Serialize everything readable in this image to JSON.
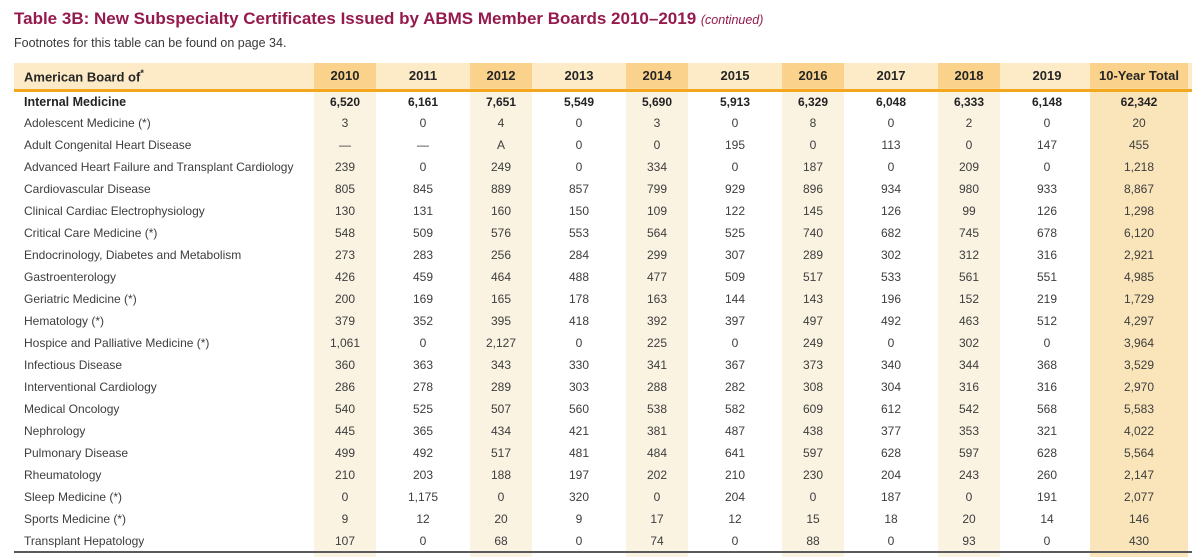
{
  "page": {
    "title_label": "Table 3B",
    "title_rest": ": New Subspecialty Certificates Issued by ABMS Member Boards 2010–2019 ",
    "title_continued": "(continued)",
    "footnote": "Footnotes for this table can be found on page 34."
  },
  "colors": {
    "title_maroon": "#951a4d",
    "header_cream": "#fcebc6",
    "header_band_orange": "#fad28c",
    "gold_rule": "#f2a71e",
    "body_stripe": "#faf3e2",
    "total_stripe": "#fae5bb",
    "text": "#3d3d3d",
    "bottom_rule": "#5a5a5a"
  },
  "table": {
    "row_header": {
      "text": "American Board of",
      "sup": "*"
    },
    "columns": [
      "2010",
      "2011",
      "2012",
      "2013",
      "2014",
      "2015",
      "2016",
      "2017",
      "2018",
      "2019",
      "10-Year Total"
    ],
    "rows": [
      {
        "label": "Internal Medicine",
        "bold": true,
        "values": [
          "6,520",
          "6,161",
          "7,651",
          "5,549",
          "5,690",
          "5,913",
          "6,329",
          "6,048",
          "6,333",
          "6,148",
          "62,342"
        ]
      },
      {
        "label": "Adolescent Medicine (*)",
        "values": [
          "3",
          "0",
          "4",
          "0",
          "3",
          "0",
          "8",
          "0",
          "2",
          "0",
          "20"
        ]
      },
      {
        "label": "Adult Congenital Heart Disease",
        "values": [
          "—",
          "—",
          "A",
          "0",
          "0",
          "195",
          "0",
          "113",
          "0",
          "147",
          "455"
        ]
      },
      {
        "label": "Advanced Heart Failure and Transplant Cardiology",
        "values": [
          "239",
          "0",
          "249",
          "0",
          "334",
          "0",
          "187",
          "0",
          "209",
          "0",
          "1,218"
        ]
      },
      {
        "label": "Cardiovascular Disease",
        "values": [
          "805",
          "845",
          "889",
          "857",
          "799",
          "929",
          "896",
          "934",
          "980",
          "933",
          "8,867"
        ]
      },
      {
        "label": "Clinical Cardiac Electrophysiology",
        "values": [
          "130",
          "131",
          "160",
          "150",
          "109",
          "122",
          "145",
          "126",
          "99",
          "126",
          "1,298"
        ]
      },
      {
        "label": "Critical Care Medicine (*)",
        "values": [
          "548",
          "509",
          "576",
          "553",
          "564",
          "525",
          "740",
          "682",
          "745",
          "678",
          "6,120"
        ]
      },
      {
        "label": "Endocrinology, Diabetes and Metabolism",
        "values": [
          "273",
          "283",
          "256",
          "284",
          "299",
          "307",
          "289",
          "302",
          "312",
          "316",
          "2,921"
        ]
      },
      {
        "label": "Gastroenterology",
        "values": [
          "426",
          "459",
          "464",
          "488",
          "477",
          "509",
          "517",
          "533",
          "561",
          "551",
          "4,985"
        ]
      },
      {
        "label": "Geriatric Medicine (*)",
        "values": [
          "200",
          "169",
          "165",
          "178",
          "163",
          "144",
          "143",
          "196",
          "152",
          "219",
          "1,729"
        ]
      },
      {
        "label": "Hematology (*)",
        "values": [
          "379",
          "352",
          "395",
          "418",
          "392",
          "397",
          "497",
          "492",
          "463",
          "512",
          "4,297"
        ]
      },
      {
        "label": "Hospice and Palliative Medicine (*)",
        "values": [
          "1,061",
          "0",
          "2,127",
          "0",
          "225",
          "0",
          "249",
          "0",
          "302",
          "0",
          "3,964"
        ]
      },
      {
        "label": "Infectious Disease",
        "values": [
          "360",
          "363",
          "343",
          "330",
          "341",
          "367",
          "373",
          "340",
          "344",
          "368",
          "3,529"
        ]
      },
      {
        "label": "Interventional Cardiology",
        "values": [
          "286",
          "278",
          "289",
          "303",
          "288",
          "282",
          "308",
          "304",
          "316",
          "316",
          "2,970"
        ]
      },
      {
        "label": "Medical Oncology",
        "values": [
          "540",
          "525",
          "507",
          "560",
          "538",
          "582",
          "609",
          "612",
          "542",
          "568",
          "5,583"
        ]
      },
      {
        "label": "Nephrology",
        "values": [
          "445",
          "365",
          "434",
          "421",
          "381",
          "487",
          "438",
          "377",
          "353",
          "321",
          "4,022"
        ]
      },
      {
        "label": "Pulmonary Disease",
        "values": [
          "499",
          "492",
          "517",
          "481",
          "484",
          "641",
          "597",
          "628",
          "597",
          "628",
          "5,564"
        ]
      },
      {
        "label": "Rheumatology",
        "values": [
          "210",
          "203",
          "188",
          "197",
          "202",
          "210",
          "230",
          "204",
          "243",
          "260",
          "2,147"
        ]
      },
      {
        "label": "Sleep Medicine (*)",
        "values": [
          "0",
          "1,175",
          "0",
          "320",
          "0",
          "204",
          "0",
          "187",
          "0",
          "191",
          "2,077"
        ]
      },
      {
        "label": "Sports Medicine (*)",
        "values": [
          "9",
          "12",
          "20",
          "9",
          "17",
          "12",
          "15",
          "18",
          "20",
          "14",
          "146"
        ]
      },
      {
        "label": "Transplant Hepatology",
        "values": [
          "107",
          "0",
          "68",
          "0",
          "74",
          "0",
          "88",
          "0",
          "93",
          "0",
          "430"
        ]
      }
    ]
  }
}
